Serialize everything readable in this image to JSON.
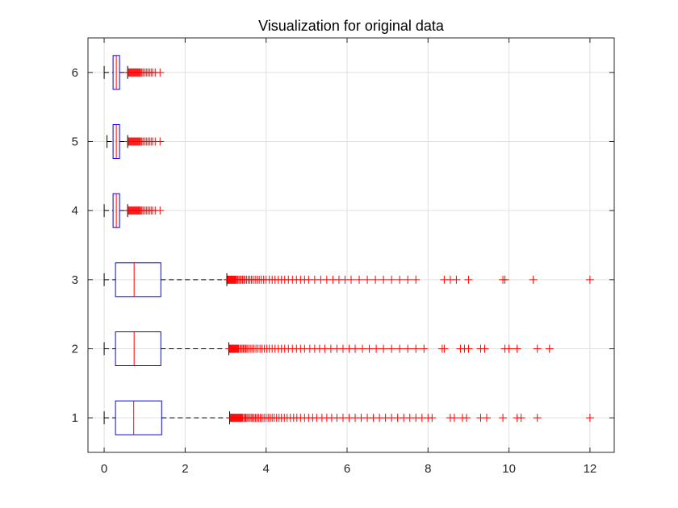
{
  "chart_data": {
    "type": "boxplot",
    "orientation": "horizontal",
    "title": "Visualization for original data",
    "xlabel": "",
    "ylabel": "",
    "xlim": [
      -0.4,
      12.6
    ],
    "ylim": [
      0.5,
      6.5
    ],
    "xticks": [
      0,
      2,
      4,
      6,
      8,
      10,
      12
    ],
    "yticks": [
      1,
      2,
      3,
      4,
      5,
      6
    ],
    "grid": true,
    "colors": {
      "box": "#0000ff",
      "median": "#ff0000",
      "outlier": "#ff0000",
      "whisker": "#000000",
      "grid": "#e0e0e0",
      "axis": "#262626"
    },
    "boxes": [
      {
        "category": "1",
        "whisker_low": 0.0,
        "q1": 0.28,
        "median": 0.73,
        "q3": 1.42,
        "whisker_high": 3.1,
        "outliers": [
          3.12,
          3.14,
          3.16,
          3.18,
          3.2,
          3.22,
          3.24,
          3.26,
          3.28,
          3.3,
          3.32,
          3.34,
          3.36,
          3.38,
          3.4,
          3.42,
          3.45,
          3.48,
          3.5,
          3.53,
          3.56,
          3.6,
          3.63,
          3.66,
          3.7,
          3.74,
          3.78,
          3.82,
          3.86,
          3.9,
          3.95,
          4.0,
          4.05,
          4.1,
          4.15,
          4.2,
          4.26,
          4.32,
          4.38,
          4.45,
          4.52,
          4.6,
          4.68,
          4.76,
          4.85,
          4.95,
          5.05,
          5.15,
          5.25,
          5.38,
          5.5,
          5.62,
          5.75,
          5.9,
          6.05,
          6.2,
          6.35,
          6.5,
          6.65,
          6.8,
          6.95,
          7.1,
          7.25,
          7.4,
          7.55,
          7.7,
          7.85,
          8.0,
          8.1,
          8.55,
          8.65,
          8.85,
          8.95,
          9.3,
          9.45,
          9.85,
          10.2,
          10.3,
          10.7,
          12.0
        ]
      },
      {
        "category": "2",
        "whisker_low": 0.0,
        "q1": 0.28,
        "median": 0.74,
        "q3": 1.4,
        "whisker_high": 3.08,
        "outliers": [
          3.1,
          3.12,
          3.14,
          3.16,
          3.18,
          3.2,
          3.22,
          3.24,
          3.26,
          3.28,
          3.3,
          3.32,
          3.35,
          3.38,
          3.41,
          3.44,
          3.47,
          3.5,
          3.53,
          3.57,
          3.61,
          3.65,
          3.7,
          3.75,
          3.8,
          3.85,
          3.9,
          3.96,
          4.02,
          4.08,
          4.15,
          4.22,
          4.3,
          4.38,
          4.46,
          4.55,
          4.65,
          4.75,
          4.85,
          4.95,
          5.08,
          5.2,
          5.32,
          5.45,
          5.6,
          5.75,
          5.9,
          6.05,
          6.2,
          6.38,
          6.55,
          6.72,
          6.9,
          7.1,
          7.3,
          7.5,
          7.7,
          7.9,
          8.35,
          8.4,
          8.8,
          8.9,
          9.0,
          9.3,
          9.4,
          9.9,
          10.0,
          10.2,
          10.7,
          11.0
        ]
      },
      {
        "category": "3",
        "whisker_low": 0.0,
        "q1": 0.28,
        "median": 0.74,
        "q3": 1.4,
        "whisker_high": 3.03,
        "outliers": [
          3.05,
          3.07,
          3.09,
          3.11,
          3.13,
          3.15,
          3.17,
          3.19,
          3.21,
          3.23,
          3.25,
          3.27,
          3.3,
          3.33,
          3.36,
          3.39,
          3.42,
          3.45,
          3.48,
          3.52,
          3.56,
          3.6,
          3.64,
          3.68,
          3.73,
          3.78,
          3.83,
          3.88,
          3.94,
          4.0,
          4.08,
          4.15,
          4.22,
          4.3,
          4.38,
          4.46,
          4.55,
          4.65,
          4.75,
          4.85,
          4.95,
          5.05,
          5.2,
          5.35,
          5.5,
          5.65,
          5.8,
          5.95,
          6.1,
          6.3,
          6.5,
          6.7,
          6.9,
          7.1,
          7.3,
          7.5,
          7.7,
          8.4,
          8.55,
          8.7,
          9.0,
          9.85,
          9.9,
          10.6,
          12.0
        ]
      },
      {
        "category": "4",
        "whisker_low": 0.0,
        "q1": 0.22,
        "median": 0.3,
        "q3": 0.38,
        "whisker_high": 0.58,
        "outliers": [
          0.6,
          0.62,
          0.64,
          0.66,
          0.68,
          0.7,
          0.72,
          0.74,
          0.76,
          0.78,
          0.8,
          0.82,
          0.84,
          0.86,
          0.88,
          0.9,
          0.93,
          0.96,
          1.0,
          1.04,
          1.08,
          1.12,
          1.16,
          1.2,
          1.26,
          1.38
        ]
      },
      {
        "category": "5",
        "whisker_low": 0.07,
        "q1": 0.22,
        "median": 0.3,
        "q3": 0.38,
        "whisker_high": 0.58,
        "outliers": [
          0.6,
          0.62,
          0.64,
          0.66,
          0.68,
          0.7,
          0.72,
          0.74,
          0.76,
          0.78,
          0.8,
          0.82,
          0.84,
          0.86,
          0.88,
          0.9,
          0.93,
          0.96,
          1.0,
          1.04,
          1.08,
          1.12,
          1.16,
          1.2,
          1.26,
          1.38
        ]
      },
      {
        "category": "6",
        "whisker_low": 0.0,
        "q1": 0.22,
        "median": 0.3,
        "q3": 0.38,
        "whisker_high": 0.58,
        "outliers": [
          0.6,
          0.62,
          0.64,
          0.66,
          0.68,
          0.7,
          0.72,
          0.74,
          0.76,
          0.78,
          0.8,
          0.82,
          0.84,
          0.86,
          0.88,
          0.9,
          0.93,
          0.96,
          1.0,
          1.04,
          1.08,
          1.12,
          1.16,
          1.2,
          1.26,
          1.38
        ]
      }
    ]
  }
}
